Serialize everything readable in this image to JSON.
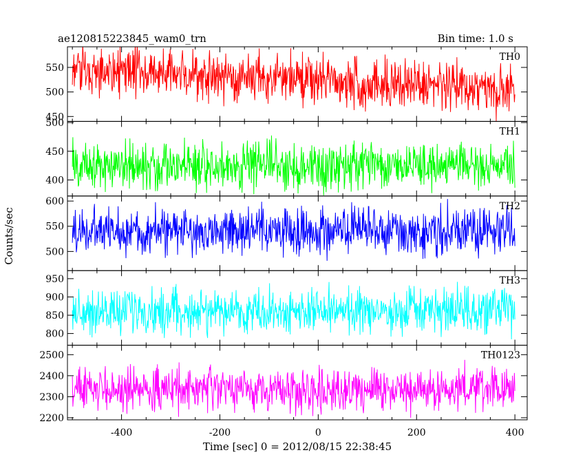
{
  "chart_data": {
    "type": "line",
    "title_left": "ae120815223845_wam0_trn",
    "title_right": "Bin time: 1.0 s",
    "xlabel": "Time [sec] 0 = 2012/08/15 22:38:45",
    "ylabel": "Counts/sec",
    "xlim": [
      -510,
      425
    ],
    "x_range": [
      -500,
      400
    ],
    "x_step": 1,
    "x_ticks": [
      -400,
      -200,
      0,
      200,
      400
    ],
    "panels": [
      {
        "name": "TH0",
        "color": "#ff0000",
        "ylim": [
          440,
          592
        ],
        "y_ticks": [
          450,
          500,
          550
        ],
        "mean": 520,
        "noise": 25,
        "trend": [
          545,
          505
        ]
      },
      {
        "name": "TH1",
        "color": "#00ff00",
        "ylim": [
          372,
          502
        ],
        "y_ticks": [
          400,
          450,
          500
        ],
        "mean": 425,
        "noise": 21,
        "trend": [
          425,
          425
        ]
      },
      {
        "name": "TH2",
        "color": "#0000ff",
        "ylim": [
          462,
          610
        ],
        "y_ticks": [
          500,
          550,
          600
        ],
        "mean": 540,
        "noise": 23,
        "trend": [
          540,
          540
        ]
      },
      {
        "name": "TH3",
        "color": "#00ffff",
        "ylim": [
          768,
          972
        ],
        "y_ticks": [
          800,
          850,
          900,
          950
        ],
        "mean": 860,
        "noise": 30,
        "trend": [
          860,
          860
        ]
      },
      {
        "name": "TH0123",
        "color": "#ff00ff",
        "ylim": [
          2190,
          2545
        ],
        "y_ticks": [
          2200,
          2300,
          2400,
          2500
        ],
        "mean": 2335,
        "noise": 50,
        "trend": [
          2335,
          2335
        ]
      }
    ]
  }
}
